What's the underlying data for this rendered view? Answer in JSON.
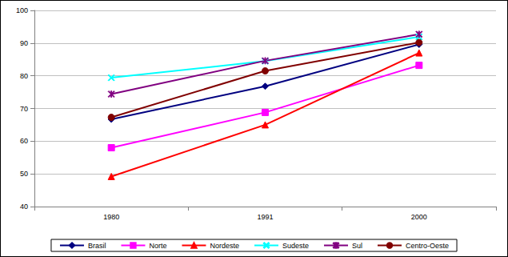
{
  "chart_data": {
    "type": "line",
    "categories": [
      "1980",
      "1991",
      "2000"
    ],
    "series": [
      {
        "name": "Brasil",
        "color": "#000080",
        "marker": "diamond",
        "values": [
          66.7,
          76.8,
          89.6
        ]
      },
      {
        "name": "Norte",
        "color": "#FF00FF",
        "marker": "square",
        "values": [
          58.0,
          68.8,
          83.2
        ]
      },
      {
        "name": "Nordeste",
        "color": "#FF0000",
        "marker": "triangle",
        "values": [
          49.2,
          65.0,
          87.0
        ]
      },
      {
        "name": "Sudeste",
        "color": "#00FFFF",
        "marker": "x",
        "values": [
          79.4,
          84.5,
          91.9
        ]
      },
      {
        "name": "Sul",
        "color": "#800080",
        "marker": "star",
        "values": [
          74.4,
          84.6,
          92.7
        ]
      },
      {
        "name": "Centro-Oeste",
        "color": "#800000",
        "marker": "circle",
        "values": [
          67.3,
          81.5,
          90.2
        ]
      }
    ],
    "ylim": [
      40,
      100
    ],
    "yticks": [
      40,
      50,
      60,
      70,
      80,
      90,
      100
    ],
    "grid": true,
    "legend": "bottom"
  }
}
